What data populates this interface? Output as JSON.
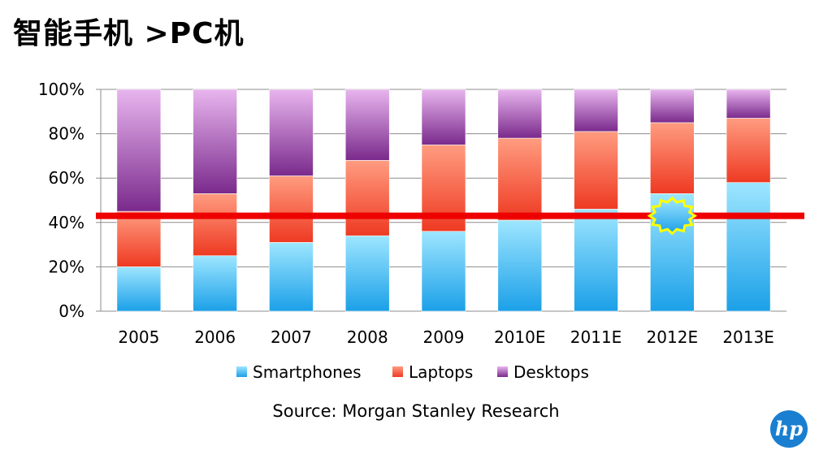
{
  "title": "智能手机 >PC机",
  "source": "Source: Morgan Stanley Research",
  "logo_text": "hp",
  "chart_data": {
    "type": "bar",
    "stacked": true,
    "categories": [
      "2005",
      "2006",
      "2007",
      "2008",
      "2009",
      "2010E",
      "2011E",
      "2012E",
      "2013E"
    ],
    "series": [
      {
        "name": "Smartphones",
        "color": "#29a8e6",
        "values": [
          20,
          25,
          31,
          34,
          36,
          41,
          46,
          53,
          58
        ]
      },
      {
        "name": "Laptops",
        "color": "#f25a3c",
        "values": [
          25,
          28,
          30,
          34,
          39,
          37,
          35,
          32,
          29
        ]
      },
      {
        "name": "Desktops",
        "color": "#8b3a96",
        "values": [
          55,
          47,
          39,
          32,
          25,
          22,
          19,
          15,
          13
        ]
      }
    ],
    "ylim": [
      0,
      100
    ],
    "yticks": [
      "0%",
      "20%",
      "40%",
      "60%",
      "80%",
      "100%"
    ],
    "reference_line": {
      "value": 43,
      "color": "#ee0000"
    },
    "highlight": {
      "category": "2012E",
      "value": 43,
      "color": "#ffff00"
    },
    "legend_position": "bottom"
  }
}
